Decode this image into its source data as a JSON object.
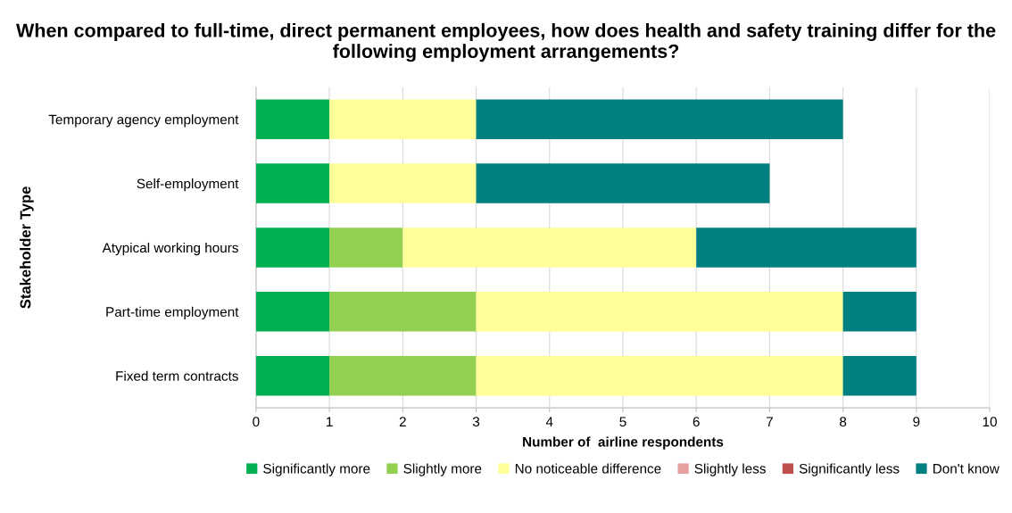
{
  "chart_data": {
    "type": "bar",
    "orientation": "horizontal",
    "stacked": true,
    "title": "When compared to full-time, direct permanent employees, how does health and safety training differ for the following employment arrangements?",
    "xlabel": "Number of  airline respondents",
    "ylabel": "Stakeholder Type",
    "categories": [
      "Temporary agency employment",
      "Self-employment",
      "Atypical working hours",
      "Part-time employment",
      "Fixed term contracts"
    ],
    "series": [
      {
        "name": "Significantly more",
        "color": "#00b050",
        "values": [
          1,
          1,
          1,
          1,
          1
        ]
      },
      {
        "name": "Slightly more",
        "color": "#92d050",
        "values": [
          0,
          0,
          1,
          2,
          2
        ]
      },
      {
        "name": "No noticeable difference",
        "color": "#ffff99",
        "values": [
          2,
          2,
          4,
          5,
          5
        ]
      },
      {
        "name": "Slightly less",
        "color": "#e6a0a0",
        "values": [
          0,
          0,
          0,
          0,
          0
        ]
      },
      {
        "name": "Significantly less",
        "color": "#c0504d",
        "values": [
          0,
          0,
          0,
          0,
          0
        ]
      },
      {
        "name": "Don't know",
        "color": "#008080",
        "values": [
          5,
          4,
          3,
          1,
          1
        ]
      }
    ],
    "xlim": [
      0,
      10
    ],
    "xticks": [
      0,
      1,
      2,
      3,
      4,
      5,
      6,
      7,
      8,
      9,
      10
    ],
    "grid": "x",
    "legend": "bottom"
  }
}
